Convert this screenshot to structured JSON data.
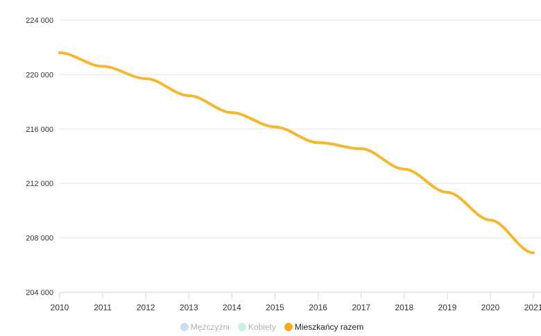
{
  "chart_data": {
    "type": "line",
    "x": [
      2010,
      2011,
      2012,
      2013,
      2014,
      2015,
      2016,
      2017,
      2018,
      2019,
      2020,
      2021
    ],
    "series": [
      {
        "name": "Mężczyźni",
        "values": null,
        "visible": false,
        "color": "#c8dff0"
      },
      {
        "name": "Kobiety",
        "values": null,
        "visible": false,
        "color": "#c9f1e4"
      },
      {
        "name": "Mieszkańcy razem",
        "visible": true,
        "color": "#f5b731",
        "values": [
          221600,
          220600,
          219700,
          218450,
          217200,
          216150,
          215000,
          214550,
          213050,
          211350,
          209300,
          206900
        ]
      }
    ],
    "ylim": [
      204000,
      224000
    ],
    "yticks": [
      204000,
      208000,
      212000,
      216000,
      220000,
      224000
    ],
    "ytick_labels": [
      "204 000",
      "208 000",
      "212 000",
      "216 000",
      "220 000",
      "224 000"
    ],
    "xtick_labels": [
      "2010",
      "2011",
      "2012",
      "2013",
      "2014",
      "2015",
      "2016",
      "2017",
      "2018",
      "2019",
      "2020",
      "2021"
    ],
    "grid": true,
    "legend_placement": "bottom"
  }
}
